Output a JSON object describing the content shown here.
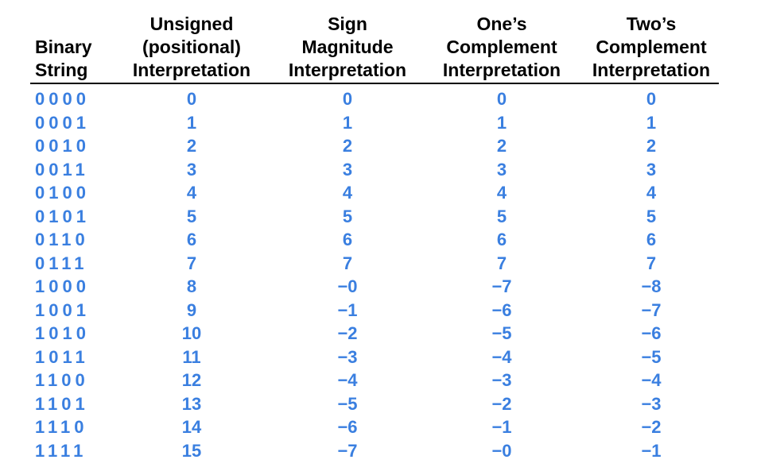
{
  "colors": {
    "header_text": "#000000",
    "value_text": "#3a7fe0",
    "rule": "#000000"
  },
  "headers": [
    [
      "Binary",
      "String"
    ],
    [
      "Unsigned",
      "(positional)",
      "Interpretation"
    ],
    [
      "Sign",
      "Magnitude",
      "Interpretation"
    ],
    [
      "One’s",
      "Complement",
      "Interpretation"
    ],
    [
      "Two’s",
      "Complement",
      "Interpretation"
    ]
  ],
  "rows": [
    [
      "0000",
      "0",
      "0",
      "0",
      "0"
    ],
    [
      "0001",
      "1",
      "1",
      "1",
      "1"
    ],
    [
      "0010",
      "2",
      "2",
      "2",
      "2"
    ],
    [
      "0011",
      "3",
      "3",
      "3",
      "3"
    ],
    [
      "0100",
      "4",
      "4",
      "4",
      "4"
    ],
    [
      "0101",
      "5",
      "5",
      "5",
      "5"
    ],
    [
      "0110",
      "6",
      "6",
      "6",
      "6"
    ],
    [
      "0111",
      "7",
      "7",
      "7",
      "7"
    ],
    [
      "1000",
      "8",
      "−0",
      "−7",
      "−8"
    ],
    [
      "1001",
      "9",
      "−1",
      "−6",
      "−7"
    ],
    [
      "1010",
      "10",
      "−2",
      "−5",
      "−6"
    ],
    [
      "1011",
      "11",
      "−3",
      "−4",
      "−5"
    ],
    [
      "1100",
      "12",
      "−4",
      "−3",
      "−4"
    ],
    [
      "1101",
      "13",
      "−5",
      "−2",
      "−3"
    ],
    [
      "1110",
      "14",
      "−6",
      "−1",
      "−2"
    ],
    [
      "1111",
      "15",
      "−7",
      "−0",
      "−1"
    ]
  ]
}
